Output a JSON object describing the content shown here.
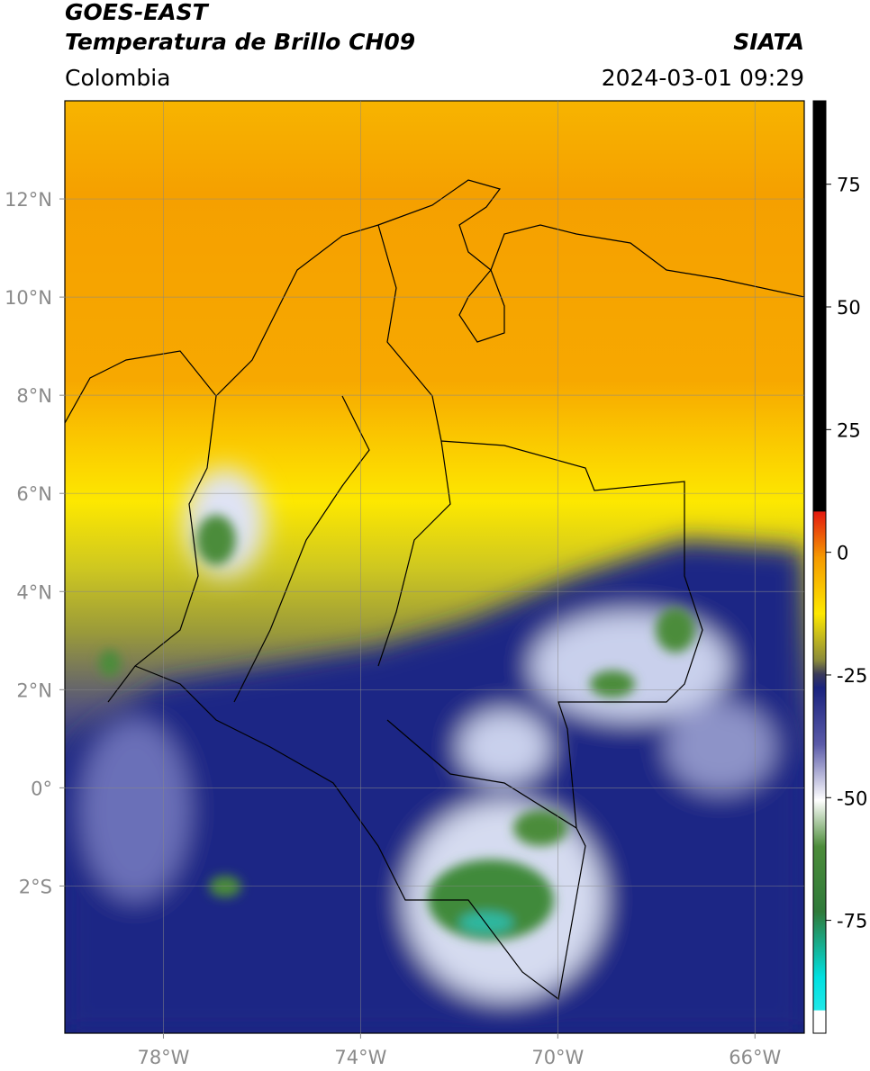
{
  "header": {
    "title": "GOES-EAST",
    "subtitle": "Temperatura de Brillo CH09",
    "region": "Colombia",
    "source": "SIATA",
    "datetime": "2024-03-01 09:29"
  },
  "map": {
    "xlim": [
      -80,
      -65
    ],
    "ylim": [
      -5,
      14
    ],
    "xticks": [
      {
        "value": -78,
        "label": "78°W"
      },
      {
        "value": -74,
        "label": "74°W"
      },
      {
        "value": -70,
        "label": "70°W"
      },
      {
        "value": -66,
        "label": "66°W"
      }
    ],
    "yticks": [
      {
        "value": 12,
        "label": "12°N"
      },
      {
        "value": 10,
        "label": "10°N"
      },
      {
        "value": 8,
        "label": "8°N"
      },
      {
        "value": 6,
        "label": "6°N"
      },
      {
        "value": 4,
        "label": "4°N"
      },
      {
        "value": 2,
        "label": "2°N"
      },
      {
        "value": 0,
        "label": "0°"
      },
      {
        "value": -2,
        "label": "2°S"
      }
    ],
    "grid": true
  },
  "colorbar": {
    "lim": [
      -98,
      92
    ],
    "ticks": [
      75,
      50,
      25,
      0,
      -25,
      -50,
      -75
    ]
  }
}
